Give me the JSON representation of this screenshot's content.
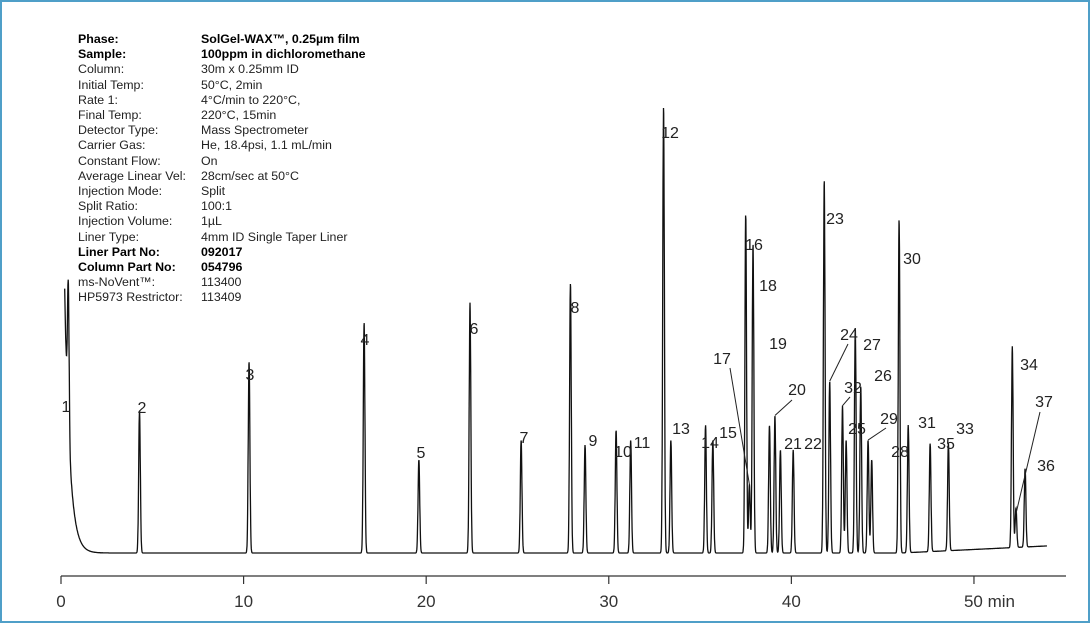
{
  "info": [
    {
      "key": "Phase:",
      "value": "SolGel-WAX™, 0.25µm film",
      "bold": true
    },
    {
      "key": "Sample:",
      "value": "100ppm in dichloromethane",
      "bold": true
    },
    {
      "key": "Column:",
      "value": "30m x 0.25mm ID",
      "bold": false
    },
    {
      "key": "Initial Temp:",
      "value": "50°C, 2min",
      "bold": false
    },
    {
      "key": "Rate 1:",
      "value": "4°C/min to 220°C,",
      "bold": false
    },
    {
      "key": "Final Temp:",
      "value": "220°C, 15min",
      "bold": false
    },
    {
      "key": "Detector Type:",
      "value": "Mass Spectrometer",
      "bold": false
    },
    {
      "key": "Carrier Gas:",
      "value": "He, 18.4psi, 1.1 mL/min",
      "bold": false
    },
    {
      "key": "Constant Flow:",
      "value": "On",
      "bold": false
    },
    {
      "key": "Average Linear Vel:",
      "value": "28cm/sec at 50°C",
      "bold": false
    },
    {
      "key": "Injection Mode:",
      "value": "Split",
      "bold": false
    },
    {
      "key": "Split Ratio:",
      "value": "100:1",
      "bold": false
    },
    {
      "key": "Injection Volume:",
      "value": "1µL",
      "bold": false
    },
    {
      "key": "Liner Type:",
      "value": "4mm ID Single Taper Liner",
      "bold": false
    },
    {
      "key": "Liner Part No:",
      "value": "092017",
      "bold": true
    },
    {
      "key": "Column Part No:",
      "value": "054796",
      "bold": true
    },
    {
      "key": "ms-NoVent™:",
      "value": "113400",
      "bold": false
    },
    {
      "key": "HP5973 Restrictor:",
      "value": "113409",
      "bold": false
    }
  ],
  "chart_data": {
    "type": "line",
    "title": "",
    "xlabel": "",
    "ylabel": "",
    "xlim": [
      0,
      54
    ],
    "ylim": [
      0,
      100
    ],
    "x_ticks": [
      0,
      10,
      20,
      30,
      40,
      50
    ],
    "x_tick_labels": [
      "0",
      "10",
      "20",
      "30",
      "40",
      "50 min"
    ],
    "line_color": "#111111",
    "axis_color": "#333333",
    "frame_color": "#4f9fc8",
    "peaks": [
      {
        "label": "1",
        "x": 0.4,
        "y": 29
      },
      {
        "label": "2",
        "x": 4.3,
        "y": 29
      },
      {
        "label": "3",
        "x": 10.3,
        "y": 39
      },
      {
        "label": "4",
        "x": 16.6,
        "y": 47
      },
      {
        "label": "5",
        "x": 19.6,
        "y": 19
      },
      {
        "label": "6",
        "x": 22.4,
        "y": 51
      },
      {
        "label": "7",
        "x": 25.2,
        "y": 23
      },
      {
        "label": "8",
        "x": 27.9,
        "y": 55
      },
      {
        "label": "9",
        "x": 28.7,
        "y": 22
      },
      {
        "label": "10",
        "x": 30.4,
        "y": 25
      },
      {
        "label": "11",
        "x": 31.2,
        "y": 23
      },
      {
        "label": "12",
        "x": 33.0,
        "y": 91
      },
      {
        "label": "13",
        "x": 33.4,
        "y": 23
      },
      {
        "label": "14",
        "x": 35.3,
        "y": 26
      },
      {
        "label": "15",
        "x": 35.7,
        "y": 23
      },
      {
        "label": "16",
        "x": 37.5,
        "y": 69
      },
      {
        "label": "17",
        "x": 37.7,
        "y": 14
      },
      {
        "label": "18",
        "x": 37.9,
        "y": 63
      },
      {
        "label": "19",
        "x": 38.8,
        "y": 26
      },
      {
        "label": "20",
        "x": 39.1,
        "y": 28
      },
      {
        "label": "21",
        "x": 39.4,
        "y": 21
      },
      {
        "label": "22",
        "x": 40.1,
        "y": 21
      },
      {
        "label": "23",
        "x": 41.8,
        "y": 76
      },
      {
        "label": "24",
        "x": 42.1,
        "y": 35
      },
      {
        "label": "25",
        "x": 43.0,
        "y": 23
      },
      {
        "label": "26",
        "x": 43.8,
        "y": 34
      },
      {
        "label": "27",
        "x": 43.5,
        "y": 46
      },
      {
        "label": "28",
        "x": 44.4,
        "y": 19
      },
      {
        "label": "29",
        "x": 44.2,
        "y": 23
      },
      {
        "label": "30",
        "x": 45.9,
        "y": 68
      },
      {
        "label": "31",
        "x": 46.4,
        "y": 26
      },
      {
        "label": "32",
        "x": 42.8,
        "y": 30
      },
      {
        "label": "33",
        "x": 48.6,
        "y": 22
      },
      {
        "label": "34",
        "x": 52.1,
        "y": 41
      },
      {
        "label": "35",
        "x": 47.6,
        "y": 22
      },
      {
        "label": "36",
        "x": 52.8,
        "y": 16
      },
      {
        "label": "37",
        "x": 52.3,
        "y": 8
      }
    ]
  }
}
